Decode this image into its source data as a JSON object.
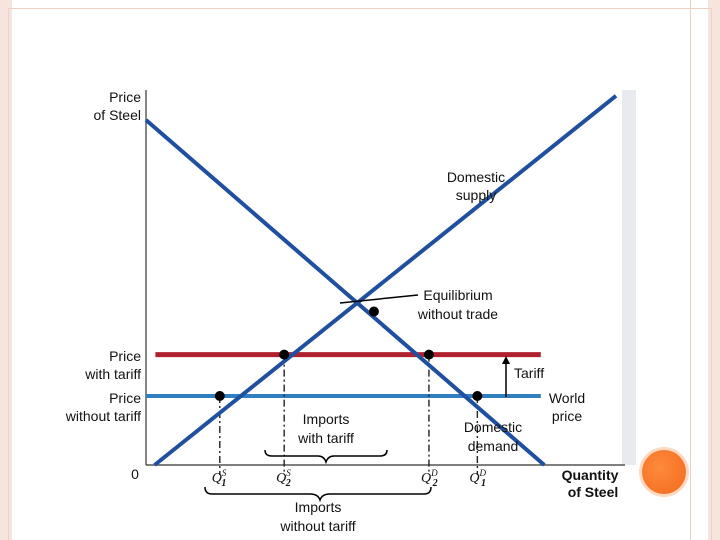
{
  "chart_data": {
    "type": "line",
    "xlabel": "Quantity of Steel",
    "ylabel": "Price of Steel",
    "xlim": [
      0,
      10
    ],
    "ylim": [
      0,
      10
    ],
    "grid": false,
    "series": [
      {
        "name": "Domestic supply",
        "color": "#1f4fa0",
        "x": [
          0.0,
          10.0
        ],
        "y": [
          -0.2,
          10.7
        ]
      },
      {
        "name": "Domestic demand",
        "color": "#1f4fa0",
        "x": [
          0.0,
          10.0
        ],
        "y": [
          10.0,
          -1.8
        ]
      }
    ],
    "hlines": [
      {
        "name": "Price with tariff",
        "y": 3.2,
        "x1": 0,
        "x2": 10,
        "color": "#b0202e"
      },
      {
        "name": "Price without tariff",
        "y": 2.0,
        "x1": 0,
        "x2": 10,
        "color": "#2f7fc0"
      }
    ],
    "points": [
      {
        "name": "Equilibrium",
        "x": 4.85,
        "y": 4.45
      },
      {
        "name": "Q1S point",
        "x": 1.57,
        "y": 2.0
      },
      {
        "name": "Q2S point",
        "x": 2.94,
        "y": 3.2
      },
      {
        "name": "Q2D point",
        "x": 6.02,
        "y": 3.2
      },
      {
        "name": "Q1D point",
        "x": 7.05,
        "y": 2.0
      }
    ],
    "quantities": [
      {
        "id": "q1s",
        "label_base": "Q",
        "label_sup": "S",
        "label_sub": "1",
        "x": 1.57,
        "y": 2.0
      },
      {
        "id": "q2s",
        "label_base": "Q",
        "label_sup": "S",
        "label_sub": "2",
        "x": 2.94,
        "y": 3.2
      },
      {
        "id": "q2d",
        "label_base": "Q",
        "label_sup": "D",
        "label_sub": "2",
        "x": 6.02,
        "y": 3.2
      },
      {
        "id": "q1d",
        "label_base": "Q",
        "label_sup": "D",
        "label_sub": "1",
        "x": 7.05,
        "y": 2.0
      }
    ],
    "origin_label": "0",
    "annotations": {
      "price_axis_1": "Price",
      "price_axis_2": "of Steel",
      "qty_axis_1": "Quantity",
      "qty_axis_2": "of Steel",
      "supply_1": "Domestic",
      "supply_2": "supply",
      "equilibrium_1": "Equilibrium",
      "equilibrium_2": "without trade",
      "price_tariff_1": "Price",
      "price_tariff_2": "with tariff",
      "price_notariff_1": "Price",
      "price_notariff_2": "without tariff",
      "tariff": "Tariff",
      "world_price_1": "World",
      "world_price_2": "price",
      "imports_tariff_1": "Imports",
      "imports_tariff_2": "with tariff",
      "demand_1": "Domestic",
      "demand_2": "demand",
      "imports_notariff_1": "Imports",
      "imports_notariff_2": "without tariff"
    }
  }
}
